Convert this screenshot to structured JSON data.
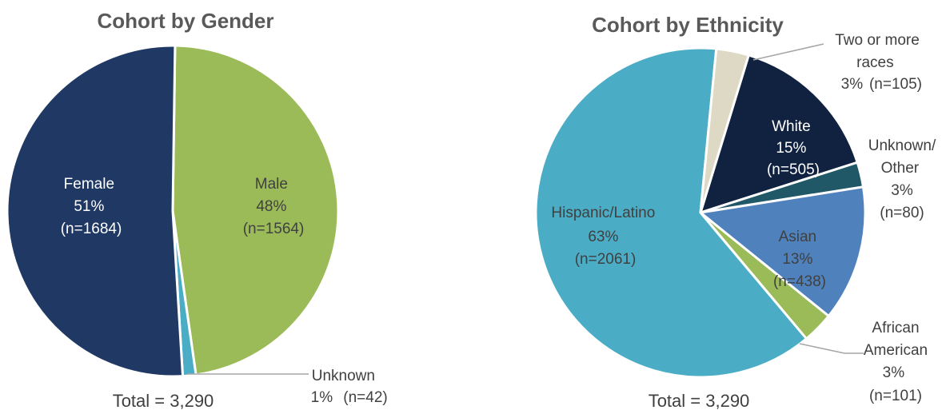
{
  "chart_data": [
    {
      "type": "pie",
      "title": "Cohort by Gender",
      "total_label": "Total = 3,290",
      "slices": [
        {
          "name": "Male",
          "percent_label": "48%",
          "n_label": "(n=1564)",
          "value": 1564,
          "color": "#9BBB59"
        },
        {
          "name": "Unknown",
          "percent_label": "1%",
          "n_label": "(n=42)",
          "value": 42,
          "color": "#4BACC6"
        },
        {
          "name": "Female",
          "percent_label": "51%",
          "n_label": "(n=1684)",
          "value": 1684,
          "color": "#1F3864"
        }
      ]
    },
    {
      "type": "pie",
      "title": "Cohort by Ethnicity",
      "total_label": "Total = 3,290",
      "slices": [
        {
          "name": "White",
          "percent_label": "15%",
          "n_label": "(n=505)",
          "value": 505,
          "color": "#112240"
        },
        {
          "name": "Unknown/ Other",
          "percent_label": "3%",
          "n_label": "(n=80)",
          "value": 80,
          "color": "#215867"
        },
        {
          "name": "Asian",
          "percent_label": "13%",
          "n_label": "(n=438)",
          "value": 438,
          "color": "#4F81BD"
        },
        {
          "name": "African American",
          "percent_label": "3%",
          "n_label": "(n=101)",
          "value": 101,
          "color": "#9BBB59"
        },
        {
          "name": "Hispanic/Latino",
          "percent_label": "63%",
          "n_label": "(n=2061)",
          "value": 2061,
          "color": "#4BACC6"
        },
        {
          "name": "Two or more races",
          "percent_label": "3%",
          "n_label": "(n=105)",
          "value": 105,
          "color": "#DDD9C4"
        }
      ]
    }
  ]
}
